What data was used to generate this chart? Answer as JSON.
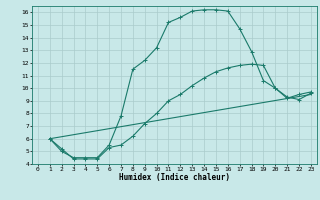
{
  "title": "",
  "xlabel": "Humidex (Indice chaleur)",
  "bg_color": "#c8e8e8",
  "line_color": "#1a7a6a",
  "grid_color": "#aacccc",
  "xlim": [
    -0.5,
    23.5
  ],
  "ylim": [
    4,
    16.5
  ],
  "xticks": [
    0,
    1,
    2,
    3,
    4,
    5,
    6,
    7,
    8,
    9,
    10,
    11,
    12,
    13,
    14,
    15,
    16,
    17,
    18,
    19,
    20,
    21,
    22,
    23
  ],
  "yticks": [
    4,
    5,
    6,
    7,
    8,
    9,
    10,
    11,
    12,
    13,
    14,
    15,
    16
  ],
  "line1_x": [
    1,
    2,
    3,
    4,
    5,
    6,
    7,
    8,
    9,
    10,
    11,
    12,
    13,
    14,
    15,
    16,
    17,
    18,
    19,
    20,
    21,
    22,
    23
  ],
  "line1_y": [
    6,
    5,
    4.5,
    4.5,
    4.5,
    5.5,
    7.8,
    11.5,
    12.2,
    13.2,
    15.2,
    15.6,
    16.1,
    16.2,
    16.2,
    16.1,
    14.7,
    12.9,
    10.6,
    10.0,
    9.2,
    9.5,
    9.7
  ],
  "line2_x": [
    1,
    2,
    3,
    4,
    5,
    6,
    7,
    8,
    9,
    10,
    11,
    12,
    13,
    14,
    15,
    16,
    17,
    18,
    19,
    20,
    21,
    22,
    23
  ],
  "line2_y": [
    6,
    5.2,
    4.4,
    4.4,
    4.4,
    5.3,
    5.5,
    6.2,
    7.2,
    8.0,
    9.0,
    9.5,
    10.2,
    10.8,
    11.3,
    11.6,
    11.8,
    11.9,
    11.8,
    10.0,
    9.3,
    9.1,
    9.6
  ],
  "line3_x": [
    1,
    23
  ],
  "line3_y": [
    6,
    9.5
  ]
}
